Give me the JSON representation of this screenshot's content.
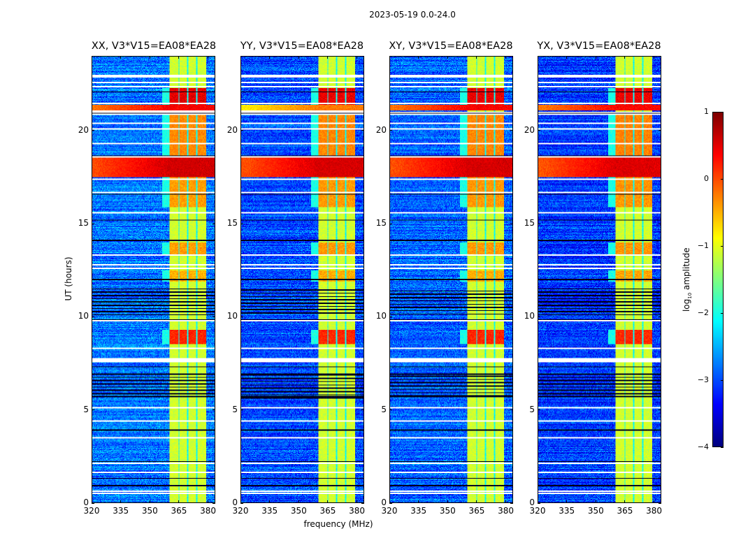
{
  "chart_data": {
    "type": "heatmap",
    "title": "2023-05-19 0.0-24.0",
    "xlabel": "frequency (MHz)",
    "ylabel": "UT (hours)",
    "xlim": [
      320,
      383.75
    ],
    "ylim": [
      0,
      24
    ],
    "xticks": [
      320,
      335,
      350,
      365,
      380
    ],
    "xtick_labels": [
      "320",
      "335",
      "350",
      "365",
      "380"
    ],
    "yticks": [
      0,
      5,
      10,
      15,
      20
    ],
    "ytick_labels": [
      "0",
      "5",
      "10",
      "15",
      "20"
    ],
    "colormap": "jet",
    "colorbar": {
      "label": "log10 amplutude",
      "label_main": "log",
      "label_sub": "10",
      "label_rest": " amplitude",
      "range": [
        -4,
        1
      ],
      "ticks": [
        1,
        0,
        -1,
        -2,
        -3,
        -4
      ],
      "tick_labels": [
        "1",
        "0",
        "−1",
        "−2",
        "−3",
        "−4"
      ]
    },
    "panels": [
      {
        "title": "XX, V3*V15=EA08*EA28",
        "pol": "XX",
        "background_log_amp": -2.8,
        "rfi_strength": 1.0
      },
      {
        "title": "YY, V3*V15=EA08*EA28",
        "pol": "YY",
        "background_log_amp": -3.0,
        "rfi_strength": 0.95
      },
      {
        "title": "XY, V3*V15=EA08*EA28",
        "pol": "XY",
        "background_log_amp": -2.9,
        "rfi_strength": 0.95
      },
      {
        "title": "YX, V3*V15=EA08*EA28",
        "pol": "YX",
        "background_log_amp": -3.1,
        "rfi_strength": 0.9
      }
    ],
    "rfi_band_MHz": [
      360.5,
      379.5
    ],
    "rfi_band_gaps_MHz": [
      365.2,
      369.6,
      374.3
    ],
    "band_base_log_amp": -1.1,
    "strong_rfi_intervals_hours": [
      {
        "start": 17.5,
        "end": 18.6,
        "log_amp": 0.6,
        "broadband": true
      },
      {
        "start": 21.1,
        "end": 21.4,
        "log_amp": 0.4,
        "broadband": true
      },
      {
        "start": 18.6,
        "end": 21.0,
        "log_amp": -0.3,
        "broadband": false
      },
      {
        "start": 15.9,
        "end": 17.5,
        "log_amp": -0.4,
        "broadband": false
      },
      {
        "start": 21.4,
        "end": 22.3,
        "log_amp": 0.5,
        "broadband": false
      },
      {
        "start": 8.5,
        "end": 9.3,
        "log_amp": 0.2,
        "broadband": false
      },
      {
        "start": 11.9,
        "end": 12.5,
        "log_amp": -0.5,
        "broadband": false
      },
      {
        "start": 13.3,
        "end": 14.0,
        "log_amp": -0.4,
        "broadband": false
      }
    ],
    "flagged_blank_rows_hours": [
      0.5,
      0.6,
      1.6,
      2.1,
      3.5,
      4.4,
      5.1,
      7.6,
      7.7,
      8.3,
      9.8,
      12.6,
      12.8,
      13.3,
      15.6,
      16.7,
      17.4,
      19.3,
      20.1,
      20.4,
      20.9,
      21.0,
      21.5,
      22.4,
      22.6,
      22.9,
      23.0
    ],
    "low_data_intervals_hours": [
      {
        "start": 5.6,
        "end": 6.9
      },
      {
        "start": 10.1,
        "end": 11.5
      }
    ]
  }
}
